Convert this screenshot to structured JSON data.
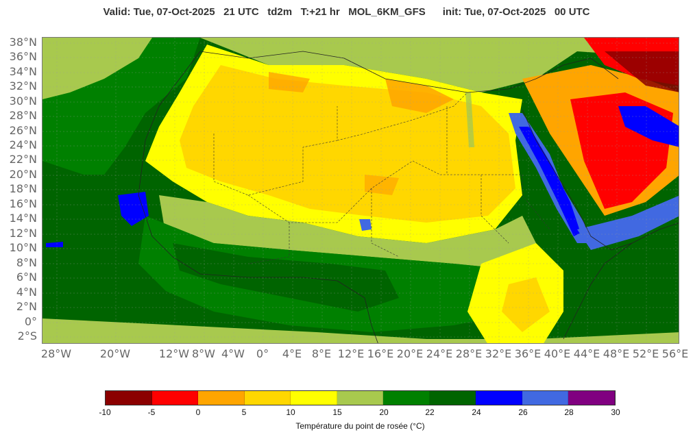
{
  "header": {
    "title": "Valid: Tue, 07-Oct-2025   21 UTC   td2m   T:+21 hr   MOL_6KM_GFS      init: Tue, 07-Oct-2025   00 UTC"
  },
  "map": {
    "lat_labels": [
      "38°N",
      "36°N",
      "34°N",
      "32°N",
      "30°N",
      "28°N",
      "26°N",
      "24°N",
      "22°N",
      "20°N",
      "18°N",
      "16°N",
      "14°N",
      "12°N",
      "10°N",
      "8°N",
      "6°N",
      "4°N",
      "2°N",
      "0°",
      "2°S"
    ],
    "lon_labels": [
      "28°W",
      "20°W",
      "12°W",
      "8°W",
      "4°W",
      "0°",
      "4°E",
      "8°E",
      "12°E",
      "16°E",
      "20°E",
      "24°E",
      "28°E",
      "32°E",
      "36°E",
      "40°E",
      "44°E",
      "48°E",
      "52°E",
      "56°E"
    ]
  },
  "legend": {
    "colors": [
      "#8b0000",
      "#ff0000",
      "#ffa500",
      "#ffd700",
      "#ffff00",
      "#a8c94e",
      "#008000",
      "#006400",
      "#0000ff",
      "#4169e1",
      "#800080"
    ],
    "ticks": [
      "-10",
      "-5",
      "0",
      "5",
      "10",
      "15",
      "20",
      "22",
      "24",
      "26",
      "28",
      "30"
    ],
    "label": "Température du point de rosée (°C)"
  }
}
